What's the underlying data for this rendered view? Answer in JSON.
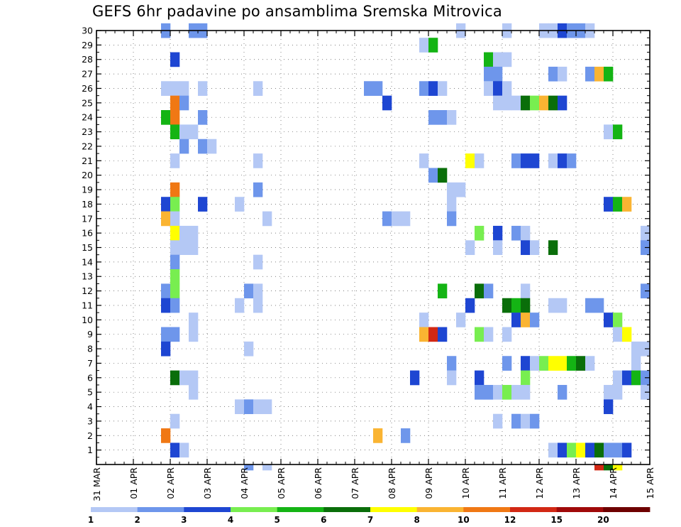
{
  "title": "GEFS 6hr padavine po ansamblima Sremska Mitrovica",
  "chart_data": {
    "type": "heatmap",
    "title": "GEFS 6hr padavine po ansamblima Sremska Mitrovica",
    "x_tick_labels": [
      "31 MAR",
      "01 APR",
      "02 APR",
      "03 APR",
      "04 APR",
      "05 APR",
      "06 APR",
      "07 APR",
      "08 APR",
      "09 APR",
      "10 APR",
      "11 APR",
      "12 APR",
      "13 APR",
      "14 APR",
      "15 APR"
    ],
    "y_tick_labels": [
      "1",
      "2",
      "3",
      "4",
      "5",
      "6",
      "7",
      "8",
      "9",
      "10",
      "11",
      "12",
      "13",
      "14",
      "15",
      "16",
      "17",
      "18",
      "19",
      "20",
      "21",
      "22",
      "23",
      "24",
      "25",
      "26",
      "27",
      "28",
      "29",
      "30"
    ],
    "x_range_steps": [
      0,
      60
    ],
    "y_range_members": [
      0,
      30
    ],
    "grid": true,
    "colorbar": {
      "levels": [
        "1",
        "2",
        "3",
        "4",
        "5",
        "6",
        "7",
        "8",
        "10",
        "12",
        "15",
        "20"
      ],
      "colors": [
        "#b4c8f5",
        "#6e96eb",
        "#1e46d2",
        "#78ee50",
        "#14b414",
        "#0a6e0a",
        "#ffff00",
        "#fab432",
        "#f07814",
        "#d22814",
        "#a00a0a",
        "#6e0000"
      ]
    },
    "cell_note": "cells: [ensemble_member, timestep_index, color_class]; timestep_index counts 6-hour steps from 31 MAR 00Z, color_class indexes colorbar.colors",
    "cells": [
      [
        30,
        7,
        1
      ],
      [
        30,
        10,
        1
      ],
      [
        30,
        11,
        1
      ],
      [
        30,
        39,
        0
      ],
      [
        30,
        44,
        0
      ],
      [
        30,
        48,
        0
      ],
      [
        30,
        49,
        0
      ],
      [
        30,
        50,
        2
      ],
      [
        30,
        51,
        1
      ],
      [
        30,
        52,
        1
      ],
      [
        30,
        53,
        0
      ],
      [
        29,
        35,
        0
      ],
      [
        29,
        36,
        4
      ],
      [
        28,
        8,
        2
      ],
      [
        28,
        42,
        4
      ],
      [
        28,
        43,
        0
      ],
      [
        28,
        44,
        0
      ],
      [
        27,
        42,
        1
      ],
      [
        27,
        43,
        1
      ],
      [
        27,
        49,
        1
      ],
      [
        27,
        50,
        0
      ],
      [
        27,
        53,
        1
      ],
      [
        27,
        54,
        7
      ],
      [
        27,
        55,
        4
      ],
      [
        26,
        7,
        0
      ],
      [
        26,
        8,
        0
      ],
      [
        26,
        9,
        0
      ],
      [
        26,
        11,
        0
      ],
      [
        26,
        17,
        0
      ],
      [
        26,
        29,
        1
      ],
      [
        26,
        30,
        1
      ],
      [
        26,
        35,
        1
      ],
      [
        26,
        36,
        2
      ],
      [
        26,
        37,
        0
      ],
      [
        26,
        42,
        0
      ],
      [
        26,
        43,
        2
      ],
      [
        26,
        44,
        0
      ],
      [
        25,
        8,
        8
      ],
      [
        25,
        9,
        1
      ],
      [
        25,
        31,
        2
      ],
      [
        25,
        43,
        0
      ],
      [
        25,
        44,
        0
      ],
      [
        25,
        45,
        0
      ],
      [
        25,
        46,
        5
      ],
      [
        25,
        47,
        3
      ],
      [
        25,
        48,
        7
      ],
      [
        25,
        49,
        5
      ],
      [
        25,
        50,
        2
      ],
      [
        24,
        7,
        4
      ],
      [
        24,
        8,
        8
      ],
      [
        24,
        11,
        1
      ],
      [
        24,
        36,
        1
      ],
      [
        24,
        37,
        1
      ],
      [
        24,
        38,
        0
      ],
      [
        23,
        8,
        4
      ],
      [
        23,
        9,
        0
      ],
      [
        23,
        10,
        0
      ],
      [
        23,
        55,
        0
      ],
      [
        23,
        56,
        4
      ],
      [
        22,
        9,
        1
      ],
      [
        22,
        11,
        1
      ],
      [
        22,
        12,
        0
      ],
      [
        21,
        8,
        0
      ],
      [
        21,
        17,
        0
      ],
      [
        21,
        35,
        0
      ],
      [
        21,
        40,
        6
      ],
      [
        21,
        41,
        0
      ],
      [
        21,
        45,
        1
      ],
      [
        21,
        46,
        2
      ],
      [
        21,
        47,
        2
      ],
      [
        21,
        49,
        0
      ],
      [
        21,
        50,
        2
      ],
      [
        21,
        51,
        1
      ],
      [
        20,
        36,
        1
      ],
      [
        20,
        37,
        5
      ],
      [
        19,
        8,
        8
      ],
      [
        19,
        17,
        1
      ],
      [
        19,
        38,
        0
      ],
      [
        19,
        39,
        0
      ],
      [
        18,
        7,
        2
      ],
      [
        18,
        8,
        3
      ],
      [
        18,
        11,
        2
      ],
      [
        18,
        15,
        0
      ],
      [
        18,
        38,
        0
      ],
      [
        18,
        55,
        2
      ],
      [
        18,
        56,
        4
      ],
      [
        18,
        57,
        7
      ],
      [
        17,
        7,
        7
      ],
      [
        17,
        8,
        0
      ],
      [
        17,
        18,
        0
      ],
      [
        17,
        31,
        1
      ],
      [
        17,
        32,
        0
      ],
      [
        17,
        33,
        0
      ],
      [
        17,
        38,
        1
      ],
      [
        16,
        8,
        6
      ],
      [
        16,
        9,
        0
      ],
      [
        16,
        10,
        0
      ],
      [
        16,
        41,
        3
      ],
      [
        16,
        43,
        2
      ],
      [
        16,
        45,
        1
      ],
      [
        16,
        46,
        0
      ],
      [
        16,
        59,
        0
      ],
      [
        15,
        8,
        0
      ],
      [
        15,
        9,
        0
      ],
      [
        15,
        10,
        0
      ],
      [
        15,
        40,
        0
      ],
      [
        15,
        43,
        0
      ],
      [
        15,
        46,
        2
      ],
      [
        15,
        47,
        0
      ],
      [
        15,
        49,
        5
      ],
      [
        15,
        59,
        1
      ],
      [
        14,
        8,
        1
      ],
      [
        14,
        17,
        0
      ],
      [
        13,
        8,
        3
      ],
      [
        12,
        7,
        1
      ],
      [
        12,
        8,
        3
      ],
      [
        12,
        16,
        1
      ],
      [
        12,
        17,
        0
      ],
      [
        12,
        37,
        4
      ],
      [
        12,
        41,
        5
      ],
      [
        12,
        42,
        1
      ],
      [
        12,
        46,
        0
      ],
      [
        12,
        59,
        1
      ],
      [
        11,
        7,
        2
      ],
      [
        11,
        8,
        1
      ],
      [
        11,
        15,
        0
      ],
      [
        11,
        17,
        0
      ],
      [
        11,
        40,
        2
      ],
      [
        11,
        44,
        5
      ],
      [
        11,
        45,
        4
      ],
      [
        11,
        46,
        5
      ],
      [
        11,
        49,
        0
      ],
      [
        11,
        50,
        0
      ],
      [
        11,
        53,
        1
      ],
      [
        11,
        54,
        1
      ],
      [
        10,
        10,
        0
      ],
      [
        10,
        35,
        0
      ],
      [
        10,
        39,
        0
      ],
      [
        10,
        45,
        2
      ],
      [
        10,
        46,
        7
      ],
      [
        10,
        47,
        1
      ],
      [
        10,
        55,
        2
      ],
      [
        10,
        56,
        3
      ],
      [
        9,
        7,
        1
      ],
      [
        9,
        8,
        1
      ],
      [
        9,
        10,
        0
      ],
      [
        9,
        35,
        7
      ],
      [
        9,
        36,
        9
      ],
      [
        9,
        37,
        2
      ],
      [
        9,
        41,
        3
      ],
      [
        9,
        42,
        0
      ],
      [
        9,
        44,
        0
      ],
      [
        9,
        56,
        0
      ],
      [
        9,
        57,
        6
      ],
      [
        8,
        7,
        2
      ],
      [
        8,
        16,
        0
      ],
      [
        8,
        58,
        0
      ],
      [
        8,
        59,
        0
      ],
      [
        7,
        38,
        1
      ],
      [
        7,
        44,
        1
      ],
      [
        7,
        46,
        2
      ],
      [
        7,
        47,
        0
      ],
      [
        7,
        48,
        3
      ],
      [
        7,
        49,
        6
      ],
      [
        7,
        50,
        6
      ],
      [
        7,
        51,
        4
      ],
      [
        7,
        52,
        5
      ],
      [
        7,
        53,
        0
      ],
      [
        7,
        58,
        0
      ],
      [
        6,
        8,
        5
      ],
      [
        6,
        9,
        0
      ],
      [
        6,
        10,
        0
      ],
      [
        6,
        34,
        2
      ],
      [
        6,
        38,
        0
      ],
      [
        6,
        41,
        2
      ],
      [
        6,
        46,
        3
      ],
      [
        6,
        56,
        0
      ],
      [
        6,
        57,
        2
      ],
      [
        6,
        58,
        4
      ],
      [
        6,
        59,
        1
      ],
      [
        5,
        10,
        0
      ],
      [
        5,
        41,
        1
      ],
      [
        5,
        42,
        1
      ],
      [
        5,
        43,
        0
      ],
      [
        5,
        44,
        3
      ],
      [
        5,
        45,
        0
      ],
      [
        5,
        46,
        0
      ],
      [
        5,
        50,
        1
      ],
      [
        5,
        55,
        0
      ],
      [
        5,
        56,
        0
      ],
      [
        5,
        59,
        0
      ],
      [
        4,
        15,
        0
      ],
      [
        4,
        16,
        1
      ],
      [
        4,
        17,
        0
      ],
      [
        4,
        18,
        0
      ],
      [
        4,
        55,
        2
      ],
      [
        3,
        8,
        0
      ],
      [
        3,
        43,
        0
      ],
      [
        3,
        45,
        1
      ],
      [
        3,
        46,
        0
      ],
      [
        3,
        47,
        1
      ],
      [
        2,
        7,
        8
      ],
      [
        2,
        30,
        7
      ],
      [
        2,
        33,
        1
      ],
      [
        1,
        8,
        2
      ],
      [
        1,
        9,
        0
      ],
      [
        1,
        49,
        0
      ],
      [
        1,
        50,
        2
      ],
      [
        1,
        51,
        3
      ],
      [
        1,
        52,
        6
      ],
      [
        1,
        53,
        2
      ],
      [
        1,
        54,
        5
      ],
      [
        1,
        55,
        1
      ],
      [
        1,
        56,
        1
      ],
      [
        1,
        57,
        2
      ],
      [
        0,
        16,
        1
      ],
      [
        0,
        18,
        0
      ],
      [
        0,
        54,
        9
      ],
      [
        0,
        55,
        5
      ],
      [
        0,
        56,
        6
      ]
    ]
  }
}
